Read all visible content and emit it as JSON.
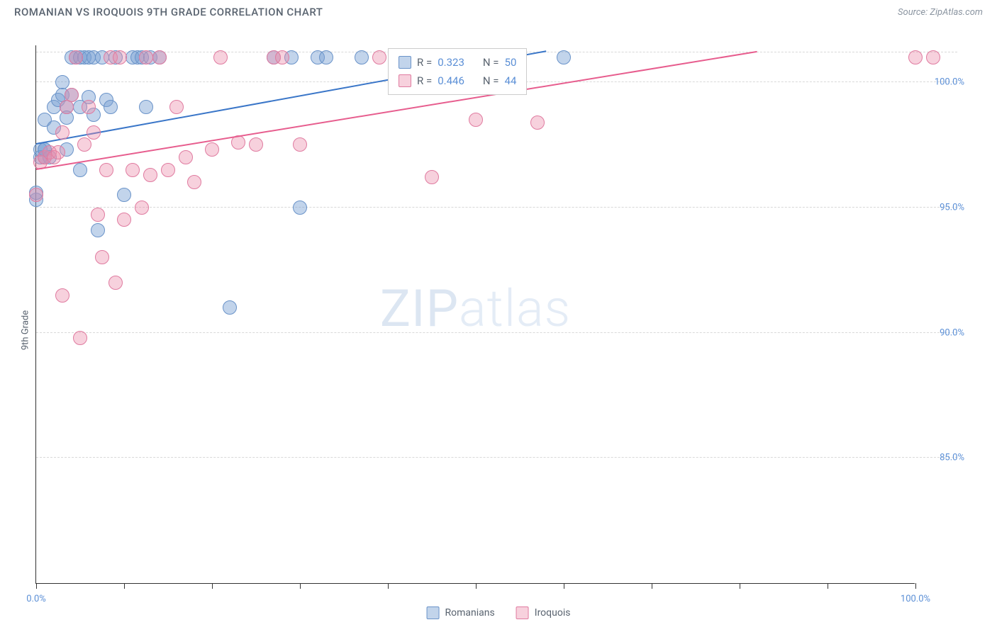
{
  "header": {
    "title": "ROMANIAN VS IROQUOIS 9TH GRADE CORRELATION CHART",
    "source": "Source: ZipAtlas.com"
  },
  "ylabel": "9th Grade",
  "watermark": {
    "bold": "ZIP",
    "thin": "atlas"
  },
  "chart": {
    "type": "scatter",
    "xlim": [
      0,
      100
    ],
    "ylim": [
      80,
      101.5
    ],
    "x_ticks": [
      0,
      10,
      20,
      30,
      40,
      50,
      60,
      70,
      80,
      90,
      100
    ],
    "x_tick_labels": {
      "0": "0.0%",
      "100": "100.0%"
    },
    "y_gridlines": [
      85,
      90,
      95,
      100,
      101.2
    ],
    "y_tick_labels": {
      "85": "85.0%",
      "90": "90.0%",
      "95": "95.0%",
      "100": "100.0%"
    },
    "background_color": "#ffffff",
    "grid_color": "#d8d8d8",
    "axis_color": "#333333",
    "tick_label_color": "#5b8fd6"
  },
  "series": [
    {
      "name": "Romanians",
      "color_fill": "rgba(120,160,210,0.45)",
      "color_stroke": "#6a93c9",
      "trend_color": "#3a76c8",
      "marker_radius": 10,
      "R": "0.323",
      "N": "50",
      "trend": {
        "x1": 0,
        "y1": 97.5,
        "x2": 58,
        "y2": 101.2
      },
      "points": [
        [
          0,
          95.3
        ],
        [
          0,
          95.6
        ],
        [
          0.5,
          97.0
        ],
        [
          0.5,
          97.3
        ],
        [
          1,
          97.0
        ],
        [
          1,
          97.3
        ],
        [
          1,
          97.3
        ],
        [
          1,
          98.5
        ],
        [
          1.5,
          97.0
        ],
        [
          2,
          99.0
        ],
        [
          2,
          98.2
        ],
        [
          2.5,
          99.3
        ],
        [
          3,
          100.0
        ],
        [
          3,
          99.5
        ],
        [
          3.5,
          99.0
        ],
        [
          3.5,
          98.6
        ],
        [
          3.5,
          97.3
        ],
        [
          4,
          101.0
        ],
        [
          4,
          99.5
        ],
        [
          4.5,
          101.0
        ],
        [
          5,
          101.0
        ],
        [
          5,
          99.0
        ],
        [
          5,
          96.5
        ],
        [
          5.5,
          101.0
        ],
        [
          6,
          101.0
        ],
        [
          6,
          99.4
        ],
        [
          6.5,
          101.0
        ],
        [
          6.5,
          98.7
        ],
        [
          7,
          94.1
        ],
        [
          7.5,
          101.0
        ],
        [
          8,
          99.3
        ],
        [
          8.5,
          99.0
        ],
        [
          9,
          101.0
        ],
        [
          10,
          95.5
        ],
        [
          11,
          101.0
        ],
        [
          11.5,
          101.0
        ],
        [
          12,
          101.0
        ],
        [
          12.5,
          99.0
        ],
        [
          13,
          101.0
        ],
        [
          14,
          101.0
        ],
        [
          22,
          91.0
        ],
        [
          27,
          101.0
        ],
        [
          29,
          101.0
        ],
        [
          30,
          95.0
        ],
        [
          32,
          101.0
        ],
        [
          33,
          101.0
        ],
        [
          37,
          101.0
        ],
        [
          41,
          101.0
        ],
        [
          47,
          100.0
        ],
        [
          60,
          101.0
        ]
      ]
    },
    {
      "name": "Iroquois",
      "color_fill": "rgba(235,140,170,0.40)",
      "color_stroke": "#e07ba0",
      "trend_color": "#e75d8e",
      "marker_radius": 10,
      "R": "0.446",
      "N": "44",
      "trend": {
        "x1": 0,
        "y1": 96.5,
        "x2": 82,
        "y2": 101.2
      },
      "points": [
        [
          0,
          95.5
        ],
        [
          0.5,
          96.8
        ],
        [
          1,
          97.0
        ],
        [
          1.5,
          97.2
        ],
        [
          2,
          97.0
        ],
        [
          2.5,
          97.2
        ],
        [
          3,
          98.0
        ],
        [
          3,
          91.5
        ],
        [
          3.5,
          99.0
        ],
        [
          4,
          99.5
        ],
        [
          4.5,
          101.0
        ],
        [
          5,
          89.8
        ],
        [
          5.5,
          97.5
        ],
        [
          6,
          99.0
        ],
        [
          6.5,
          98.0
        ],
        [
          7,
          94.7
        ],
        [
          7.5,
          93.0
        ],
        [
          8,
          96.5
        ],
        [
          8.5,
          101.0
        ],
        [
          9,
          92.0
        ],
        [
          9.5,
          101.0
        ],
        [
          10,
          94.5
        ],
        [
          11,
          96.5
        ],
        [
          12,
          95.0
        ],
        [
          12.5,
          101.0
        ],
        [
          13,
          96.3
        ],
        [
          14,
          101.0
        ],
        [
          15,
          96.5
        ],
        [
          16,
          99.0
        ],
        [
          17,
          97.0
        ],
        [
          18,
          96.0
        ],
        [
          20,
          97.3
        ],
        [
          21,
          101.0
        ],
        [
          23,
          97.6
        ],
        [
          25,
          97.5
        ],
        [
          27,
          101.0
        ],
        [
          28,
          101.0
        ],
        [
          30,
          97.5
        ],
        [
          39,
          101.0
        ],
        [
          45,
          96.2
        ],
        [
          50,
          98.5
        ],
        [
          57,
          98.4
        ],
        [
          100,
          101.0
        ],
        [
          102,
          101.0
        ]
      ]
    }
  ],
  "correlation_legend": {
    "r_label": "R =",
    "n_label": "N ="
  },
  "bottom_legend": {
    "items": [
      "Romanians",
      "Iroquois"
    ]
  }
}
